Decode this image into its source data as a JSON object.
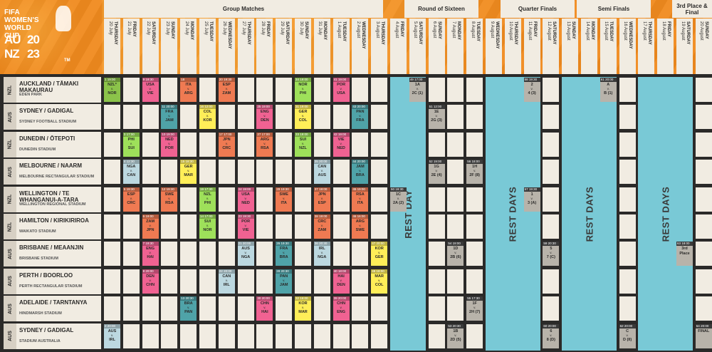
{
  "logo": {
    "title": "FIFA WOMEN'S WORLD CUP",
    "au": "AU",
    "nz": "NZ",
    "year_top": "20",
    "year_bottom": "23",
    "tm": "TM"
  },
  "stages": [
    {
      "label": "Group Matches"
    },
    {
      "label": "Round of Sixteen"
    },
    {
      "label": "Quarter Finals"
    },
    {
      "label": "Semi Finals"
    },
    {
      "label": "3rd Place & Final"
    }
  ],
  "days": [
    {
      "day": "THURSDAY",
      "date": "20 July"
    },
    {
      "day": "FRIDAY",
      "date": "21 July"
    },
    {
      "day": "SATURDAY",
      "date": "22 July"
    },
    {
      "day": "SUNDAY",
      "date": "23 July"
    },
    {
      "day": "MONDAY",
      "date": "24 July"
    },
    {
      "day": "TUESDAY",
      "date": "25 July"
    },
    {
      "day": "WEDNESDAY",
      "date": "26 July"
    },
    {
      "day": "THURSDAY",
      "date": "27 July"
    },
    {
      "day": "FRIDAY",
      "date": "28 July"
    },
    {
      "day": "SATURDAY",
      "date": "29 July"
    },
    {
      "day": "SUNDAY",
      "date": "30 July"
    },
    {
      "day": "MONDAY",
      "date": "31 July"
    },
    {
      "day": "TUESDAY",
      "date": "1 August"
    },
    {
      "day": "WEDNESDAY",
      "date": "2 August"
    },
    {
      "day": "THURSDAY",
      "date": "3 August"
    },
    {
      "day": "FRIDAY",
      "date": "4 August"
    },
    {
      "day": "SATURDAY",
      "date": "5 August"
    },
    {
      "day": "SUNDAY",
      "date": "6 August"
    },
    {
      "day": "MONDAY",
      "date": "7 August"
    },
    {
      "day": "TUESDAY",
      "date": "8 August"
    },
    {
      "day": "WEDNESDAY",
      "date": "9 August"
    },
    {
      "day": "THURSDAY",
      "date": "10 August"
    },
    {
      "day": "FRIDAY",
      "date": "11 August"
    },
    {
      "day": "SATURDAY",
      "date": "12 August"
    },
    {
      "day": "SUNDAY",
      "date": "13 August"
    },
    {
      "day": "MONDAY",
      "date": "14 August"
    },
    {
      "day": "TUESDAY",
      "date": "15 August"
    },
    {
      "day": "WEDNESDAY",
      "date": "16 August"
    },
    {
      "day": "THURSDAY",
      "date": "17 August"
    },
    {
      "day": "FRIDAY",
      "date": "18 August"
    },
    {
      "day": "SATURDAY",
      "date": "19 August"
    },
    {
      "day": "SUNDAY",
      "date": "20 August"
    }
  ],
  "venues": [
    {
      "country": "NZL",
      "name": "AUCKLAND / TĀMAKI MAKAURAU",
      "stadium": "EDEN PARK"
    },
    {
      "country": "AUS",
      "name": "SYDNEY / GADIGAL",
      "stadium": "SYDNEY FOOTBALL STADIUM"
    },
    {
      "country": "NZL",
      "name": "DUNEDIN / ŌTEPOTI",
      "stadium": "DUNEDIN STADIUM"
    },
    {
      "country": "AUS",
      "name": "MELBOURNE / NAARM",
      "stadium": "MELBOURNE RECTANGULAR STADIUM"
    },
    {
      "country": "NZL",
      "name": "WELLINGTON / TE WHANGANUI-A-TARA",
      "stadium": "WELLINGTON REGIONAL STADIUM"
    },
    {
      "country": "NZL",
      "name": "HAMILTON / KIRIKIRIROA",
      "stadium": "WAIKATO STADIUM"
    },
    {
      "country": "AUS",
      "name": "BRISBANE / MEAANJIN",
      "stadium": "BRISBANE STADIUM"
    },
    {
      "country": "AUS",
      "name": "PERTH / BOORLOO",
      "stadium": "PERTH RECTANGULAR STADIUM"
    },
    {
      "country": "AUS",
      "name": "ADELAIDE / TARNTANYA",
      "stadium": "HINDMARSH STADIUM"
    },
    {
      "country": "AUS",
      "name": "SYDNEY / GADIGAL",
      "stadium": "STADIUM AUSTRALIA"
    }
  ],
  "rest_labels": [
    "REST DAY",
    "REST DAYS",
    "REST DAYS",
    "REST DAYS"
  ],
  "colors": {
    "A": "#8bc34a",
    "B": "#4dd0b4",
    "C": "#f06292",
    "D": "#ffee58",
    "E": "#4fa3a8",
    "F": "#ef7a52",
    "G": "#9ee05a",
    "H": "#bcd8e0",
    "knockout": "#b8b3aa",
    "knockout_dark": "#3a3a3a",
    "rest": "#79c9d6",
    "header": "#f08a1e"
  },
  "matches": [
    {
      "venue": 0,
      "day": 0,
      "num": "1",
      "time": "19:00",
      "t1": "NZL*",
      "t2": "NOR",
      "grp": "A"
    },
    {
      "venue": 0,
      "day": 2,
      "num": "9",
      "time": "19:30",
      "t1": "USA",
      "t2": "VIE",
      "grp": "C"
    },
    {
      "venue": 0,
      "day": 4,
      "num": "18",
      "time": "",
      "t1": "ITA",
      "t2": "ARG",
      "grp": "F"
    },
    {
      "venue": 0,
      "day": 6,
      "num": "20",
      "time": "19:30",
      "t1": "ESP",
      "t2": "ZAM",
      "grp": "F"
    },
    {
      "venue": 0,
      "day": 10,
      "num": "34",
      "time": "19:00",
      "t1": "NOR",
      "t2": "PHI",
      "grp": "G"
    },
    {
      "venue": 0,
      "day": 12,
      "num": "41",
      "time": "19:00",
      "t1": "POR",
      "t2": "USA",
      "grp": "C"
    },
    {
      "venue": 0,
      "day": 16,
      "num": "49",
      "time": "17:00",
      "t1": "1A",
      "t2": "2C (1)",
      "grp": "KO"
    },
    {
      "venue": 0,
      "day": 22,
      "num": "58",
      "time": "19:30",
      "t1": "2",
      "t2": "4 (3)",
      "grp": "KO"
    },
    {
      "venue": 0,
      "day": 26,
      "num": "61",
      "time": "20:00",
      "t1": "A",
      "t2": "B (1)",
      "grp": "KO"
    },
    {
      "venue": 1,
      "day": 3,
      "num": "11",
      "time": "20:00",
      "t1": "FRA",
      "t2": "JAM",
      "grp": "E"
    },
    {
      "venue": 1,
      "day": 5,
      "num": "16",
      "time": "12:00",
      "t1": "COL",
      "t2": "KOR",
      "grp": "D"
    },
    {
      "venue": 1,
      "day": 8,
      "num": "25",
      "time": "19:00",
      "t1": "ENG",
      "t2": "DEN",
      "grp": "C"
    },
    {
      "venue": 1,
      "day": 10,
      "num": "31",
      "time": "19:00",
      "t1": "GER",
      "t2": "COL",
      "grp": "D"
    },
    {
      "venue": 1,
      "day": 13,
      "num": "43",
      "time": "20:00",
      "t1": "PAN",
      "t2": "FRA",
      "grp": "E"
    },
    {
      "venue": 1,
      "day": 17,
      "num": "51",
      "time": "12:00",
      "t1": "1E",
      "t2": "2G (3)",
      "grp": "KO"
    },
    {
      "venue": 2,
      "day": 1,
      "num": "3",
      "time": "17:00",
      "t1": "PHI",
      "t2": "SUI",
      "grp": "G"
    },
    {
      "venue": 2,
      "day": 3,
      "num": "10",
      "time": "19:00",
      "t1": "NED",
      "t2": "POR",
      "grp": "C"
    },
    {
      "venue": 2,
      "day": 6,
      "num": "17",
      "time": "17:00",
      "t1": "JPN",
      "t2": "CRC",
      "grp": "F"
    },
    {
      "venue": 2,
      "day": 8,
      "num": "27",
      "time": "17:00",
      "t1": "ARG",
      "t2": "RSA",
      "grp": "F"
    },
    {
      "venue": 2,
      "day": 10,
      "num": "33",
      "time": "19:00",
      "t1": "SUI",
      "t2": "NZL",
      "grp": "G"
    },
    {
      "venue": 2,
      "day": 12,
      "num": "42",
      "time": "19:00",
      "t1": "VIE",
      "t2": "NED",
      "grp": "C"
    },
    {
      "venue": 3,
      "day": 1,
      "num": "4",
      "time": "12:30",
      "t1": "NGA",
      "t2": "CAN",
      "grp": "H"
    },
    {
      "venue": 3,
      "day": 4,
      "num": "15",
      "time": "18:30",
      "t1": "GER",
      "t2": "MAR",
      "grp": "D"
    },
    {
      "venue": 3,
      "day": 11,
      "num": "35",
      "time": "20:00",
      "t1": "CAN",
      "t2": "AUS",
      "grp": "H"
    },
    {
      "venue": 3,
      "day": 13,
      "num": "44",
      "time": "20:00",
      "t1": "JAM",
      "t2": "BRA",
      "grp": "E"
    },
    {
      "venue": 3,
      "day": 17,
      "num": "52",
      "time": "19:00",
      "t1": "1G",
      "t2": "2E (4)",
      "grp": "KO"
    },
    {
      "venue": 3,
      "day": 19,
      "num": "56",
      "time": "18:00",
      "t1": "1H",
      "t2": "2F (8)",
      "grp": "KO"
    },
    {
      "venue": 4,
      "day": 1,
      "num": "5",
      "time": "19:30",
      "t1": "ESP",
      "t2": "CRC",
      "grp": "F"
    },
    {
      "venue": 4,
      "day": 3,
      "num": "12",
      "time": "19:30",
      "t1": "SWE",
      "t2": "RSA",
      "grp": "F"
    },
    {
      "venue": 4,
      "day": 5,
      "num": "19",
      "time": "17:30",
      "t1": "NZL",
      "t2": "PHI",
      "grp": "G"
    },
    {
      "venue": 4,
      "day": 7,
      "num": "24",
      "time": "19:00",
      "t1": "USA",
      "t2": "NED",
      "grp": "C"
    },
    {
      "venue": 4,
      "day": 9,
      "num": "29",
      "time": "19:30",
      "t1": "SWE",
      "t2": "ITA",
      "grp": "F"
    },
    {
      "venue": 4,
      "day": 11,
      "num": "37",
      "time": "19:00",
      "t1": "JPN",
      "t2": "ESP",
      "grp": "F"
    },
    {
      "venue": 4,
      "day": 13,
      "num": "45",
      "time": "19:00",
      "t1": "RSA",
      "t2": "ITA",
      "grp": "F"
    },
    {
      "venue": 4,
      "day": 15,
      "num": "50",
      "time": "19:30",
      "t1": "1C",
      "t2": "2A (2)",
      "grp": "KO"
    },
    {
      "venue": 4,
      "day": 22,
      "num": "57",
      "time": "19:30",
      "t1": "1",
      "t2": "3 (A)",
      "grp": "KO"
    },
    {
      "venue": 5,
      "day": 2,
      "num": "6",
      "time": "19:00",
      "t1": "ZAM",
      "t2": "JPN",
      "grp": "F"
    },
    {
      "venue": 5,
      "day": 5,
      "num": "14",
      "time": "17:00",
      "t1": "SUI",
      "t2": "NOR",
      "grp": "G"
    },
    {
      "venue": 5,
      "day": 7,
      "num": "23",
      "time": "19:30",
      "t1": "POR",
      "t2": "VIE",
      "grp": "C"
    },
    {
      "venue": 5,
      "day": 11,
      "num": "38",
      "time": "19:00",
      "t1": "CRC",
      "t2": "ZAM",
      "grp": "F"
    },
    {
      "venue": 5,
      "day": 13,
      "num": "46",
      "time": "16:00",
      "t1": "ARG",
      "t2": "SWE",
      "grp": "F"
    },
    {
      "venue": 6,
      "day": 2,
      "num": "7",
      "time": "19:30",
      "t1": "ENG",
      "t2": "HAI",
      "grp": "C"
    },
    {
      "venue": 6,
      "day": 7,
      "num": "21",
      "time": "20:00",
      "t1": "AUS",
      "t2": "NGA",
      "grp": "H"
    },
    {
      "venue": 6,
      "day": 9,
      "num": "26",
      "time": "19:30",
      "t1": "FRA",
      "t2": "BRA",
      "grp": "E"
    },
    {
      "venue": 6,
      "day": 11,
      "num": "36",
      "time": "20:30",
      "t1": "IRL",
      "t2": "NGA",
      "grp": "H"
    },
    {
      "venue": 6,
      "day": 14,
      "num": "47",
      "time": "20:00",
      "t1": "KOR",
      "t2": "GER",
      "grp": "D"
    },
    {
      "venue": 6,
      "day": 18,
      "num": "54",
      "time": "19:00",
      "t1": "1D",
      "t2": "2B (6)",
      "grp": "KO"
    },
    {
      "venue": 6,
      "day": 23,
      "num": "59",
      "time": "20:30",
      "t1": "5",
      "t2": "7 (C)",
      "grp": "KO"
    },
    {
      "venue": 6,
      "day": 30,
      "num": "63",
      "time": "18:00",
      "t1": "3rd",
      "t2": "Place",
      "grp": "KO"
    },
    {
      "venue": 7,
      "day": 2,
      "num": "8",
      "time": "20:00",
      "t1": "DEN",
      "t2": "CHN",
      "grp": "C"
    },
    {
      "venue": 7,
      "day": 6,
      "num": "22",
      "time": "20:00",
      "t1": "CAN",
      "t2": "IRL",
      "grp": "H"
    },
    {
      "venue": 7,
      "day": 9,
      "num": "28",
      "time": "20:30",
      "t1": "PAN",
      "t2": "JAM",
      "grp": "E"
    },
    {
      "venue": 7,
      "day": 12,
      "num": "40",
      "time": "18:00",
      "t1": "HAI",
      "t2": "DEN",
      "grp": "C"
    },
    {
      "venue": 7,
      "day": 14,
      "num": "48",
      "time": "18:00",
      "t1": "MAR",
      "t2": "COL",
      "grp": "D"
    },
    {
      "venue": 8,
      "day": 4,
      "num": "13",
      "time": "20:30",
      "t1": "BRA",
      "t2": "PAN",
      "grp": "E"
    },
    {
      "venue": 8,
      "day": 8,
      "num": "30",
      "time": "20:00",
      "t1": "CHN",
      "t2": "HAI",
      "grp": "C"
    },
    {
      "venue": 8,
      "day": 10,
      "num": "32",
      "time": "16:00",
      "t1": "KOR",
      "t2": "MAR",
      "grp": "D"
    },
    {
      "venue": 8,
      "day": 12,
      "num": "39",
      "time": "20:00",
      "t1": "CHN",
      "t2": "ENG",
      "grp": "C"
    },
    {
      "venue": 8,
      "day": 19,
      "num": "55",
      "time": "17:30",
      "t1": "1F",
      "t2": "2H (7)",
      "grp": "KO"
    },
    {
      "venue": 9,
      "day": 0,
      "num": "2",
      "time": "20:00",
      "t1": "AUS",
      "t2": "IRL",
      "grp": "H"
    },
    {
      "venue": 9,
      "day": 18,
      "num": "53",
      "time": "20:30",
      "t1": "1B",
      "t2": "2D (5)",
      "grp": "KO"
    },
    {
      "venue": 9,
      "day": 23,
      "num": "60",
      "time": "20:00",
      "t1": "6",
      "t2": "8 (D)",
      "grp": "KO"
    },
    {
      "venue": 9,
      "day": 27,
      "num": "62",
      "time": "20:00",
      "t1": "C",
      "t2": "D (II)",
      "grp": "KO"
    },
    {
      "venue": 9,
      "day": 31,
      "num": "64",
      "time": "20:00",
      "t1": "FINAL",
      "t2": "",
      "grp": "KO"
    }
  ]
}
